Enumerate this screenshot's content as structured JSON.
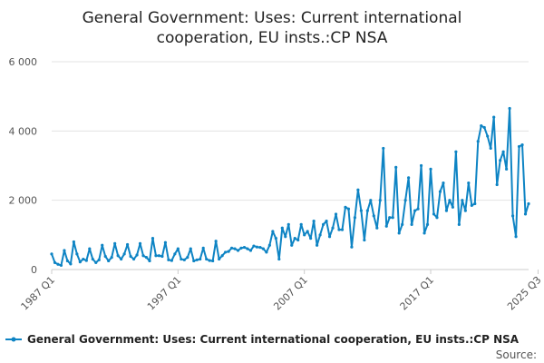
{
  "chart_data": {
    "type": "line",
    "title_lines": [
      "General Government: Uses: Current international",
      "cooperation, EU insts.:CP NSA"
    ],
    "ylim": [
      0,
      6000
    ],
    "y_ticks": [
      {
        "value": 0,
        "label": "0"
      },
      {
        "value": 2000,
        "label": "2 000"
      },
      {
        "value": 4000,
        "label": "4 000"
      },
      {
        "value": 6000,
        "label": "6 000"
      }
    ],
    "x_ticks": [
      {
        "index": 0,
        "label": "1987 Q1"
      },
      {
        "index": 40,
        "label": "1997 Q1"
      },
      {
        "index": 80,
        "label": "2007 Q1"
      },
      {
        "index": 120,
        "label": "2017 Q1"
      },
      {
        "index": 154,
        "label": "2025 Q3"
      }
    ],
    "grid": "horizontal",
    "legend_position": "bottom",
    "series": [
      {
        "name": "General Government: Uses: Current international cooperation, EU insts.:CP NSA",
        "color": "#0e84c4",
        "values": [
          450,
          200,
          150,
          120,
          550,
          250,
          160,
          800,
          450,
          220,
          300,
          260,
          600,
          300,
          200,
          280,
          700,
          380,
          250,
          350,
          750,
          400,
          300,
          450,
          720,
          380,
          300,
          420,
          750,
          400,
          350,
          250,
          900,
          400,
          400,
          380,
          780,
          280,
          260,
          450,
          600,
          300,
          280,
          350,
          600,
          250,
          280,
          300,
          620,
          300,
          260,
          250,
          820,
          300,
          400,
          500,
          520,
          620,
          600,
          550,
          620,
          640,
          600,
          550,
          680,
          650,
          640,
          600,
          500,
          700,
          1100,
          900,
          300,
          1200,
          950,
          1300,
          700,
          900,
          850,
          1300,
          1000,
          1100,
          900,
          1400,
          700,
          1000,
          1300,
          1400,
          950,
          1200,
          1600,
          1150,
          1150,
          1800,
          1750,
          650,
          1500,
          2300,
          1700,
          850,
          1700,
          2000,
          1550,
          1200,
          2000,
          3500,
          1250,
          1500,
          1500,
          2950,
          1050,
          1300,
          2000,
          2650,
          1300,
          1700,
          1750,
          3000,
          1050,
          1300,
          2900,
          1600,
          1500,
          2250,
          2500,
          1700,
          2000,
          1800,
          3400,
          1300,
          2000,
          1700,
          2500,
          1850,
          1900,
          3700,
          4150,
          4100,
          3850,
          3500,
          4400,
          2450,
          3150,
          3400,
          2900,
          4650,
          1550,
          950,
          3550,
          3600,
          1600,
          1900
        ]
      }
    ],
    "source_label": "Source:"
  }
}
